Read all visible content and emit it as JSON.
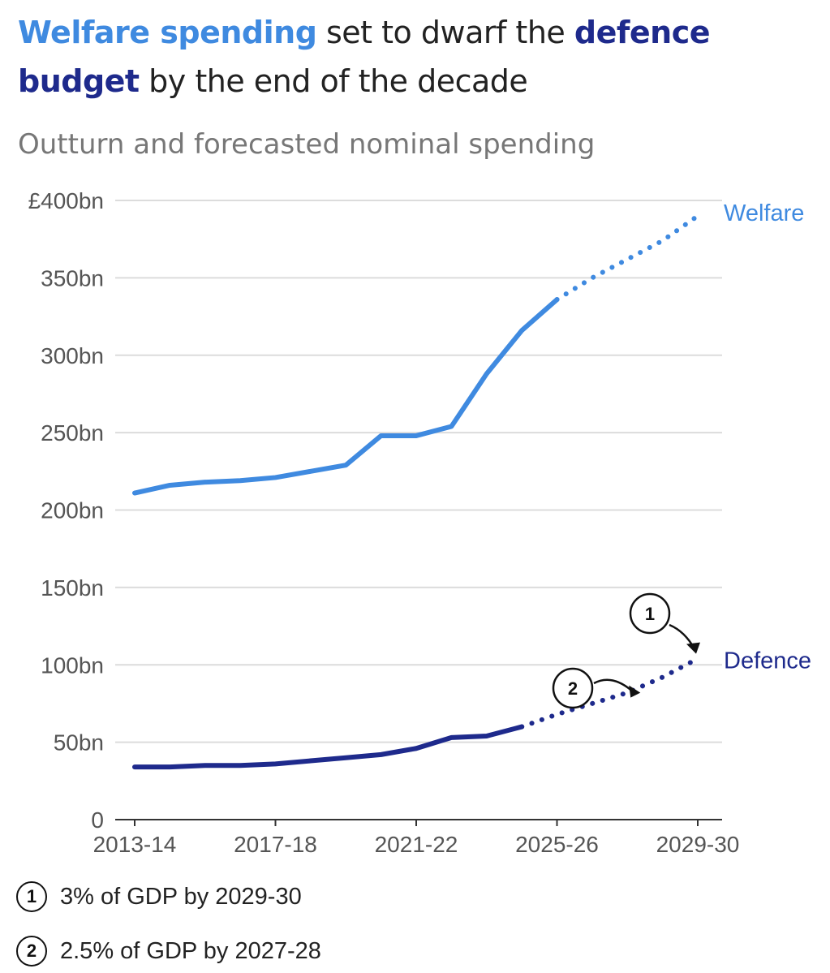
{
  "title": {
    "welfare": "Welfare spending",
    "middle": " set to dwarf the ",
    "defence": "defence budget",
    "end": " by the end of the decade"
  },
  "subtitle": "Outturn and forecasted nominal spending",
  "colors": {
    "welfare": "#3f8ae0",
    "defence": "#1e2a8c",
    "grid": "#dcdcdc",
    "axis": "#333333"
  },
  "chart_data": {
    "type": "line",
    "x": [
      "2013-14",
      "2014-15",
      "2015-16",
      "2016-17",
      "2017-18",
      "2018-19",
      "2019-20",
      "2020-21",
      "2021-22",
      "2022-23",
      "2023-24",
      "2024-25",
      "2025-26",
      "2026-27",
      "2027-28",
      "2028-29",
      "2029-30"
    ],
    "xticks": [
      "2013-14",
      "2017-18",
      "2021-22",
      "2025-26",
      "2029-30"
    ],
    "yticks": [
      0,
      50,
      100,
      150,
      200,
      250,
      300,
      350,
      400
    ],
    "ytick_labels": [
      "0",
      "50bn",
      "100bn",
      "150bn",
      "200bn",
      "250bn",
      "300bn",
      "350bn",
      "£400bn"
    ],
    "ylim": [
      0,
      400
    ],
    "series": [
      {
        "name": "Welfare",
        "outturn": [
          211,
          216,
          218,
          219,
          221,
          225,
          229,
          248,
          248,
          254,
          288,
          316,
          336
        ],
        "forecast": [
          {
            "x": "2025-26",
            "y": 336
          },
          {
            "x": "2026-27",
            "y": 350
          },
          {
            "x": "2027-28",
            "y": 362
          },
          {
            "x": "2028-29",
            "y": 374
          },
          {
            "x": "2029-30",
            "y": 390
          }
        ]
      },
      {
        "name": "Defence",
        "outturn": [
          34,
          34,
          35,
          35,
          36,
          38,
          40,
          42,
          46,
          53,
          54,
          60
        ],
        "forecast": [
          {
            "x": "2024-25",
            "y": 60
          },
          {
            "x": "2025-26",
            "y": 68
          },
          {
            "x": "2026-27",
            "y": 75
          },
          {
            "x": "2027-28",
            "y": 82
          },
          {
            "x": "2028-29",
            "y": 92
          },
          {
            "x": "2029-30",
            "y": 104
          }
        ]
      }
    ],
    "annotations": [
      {
        "id": "1",
        "text": "3% of GDP by 2029-30"
      },
      {
        "id": "2",
        "text": "2.5% of GDP by 2027-28"
      }
    ]
  }
}
